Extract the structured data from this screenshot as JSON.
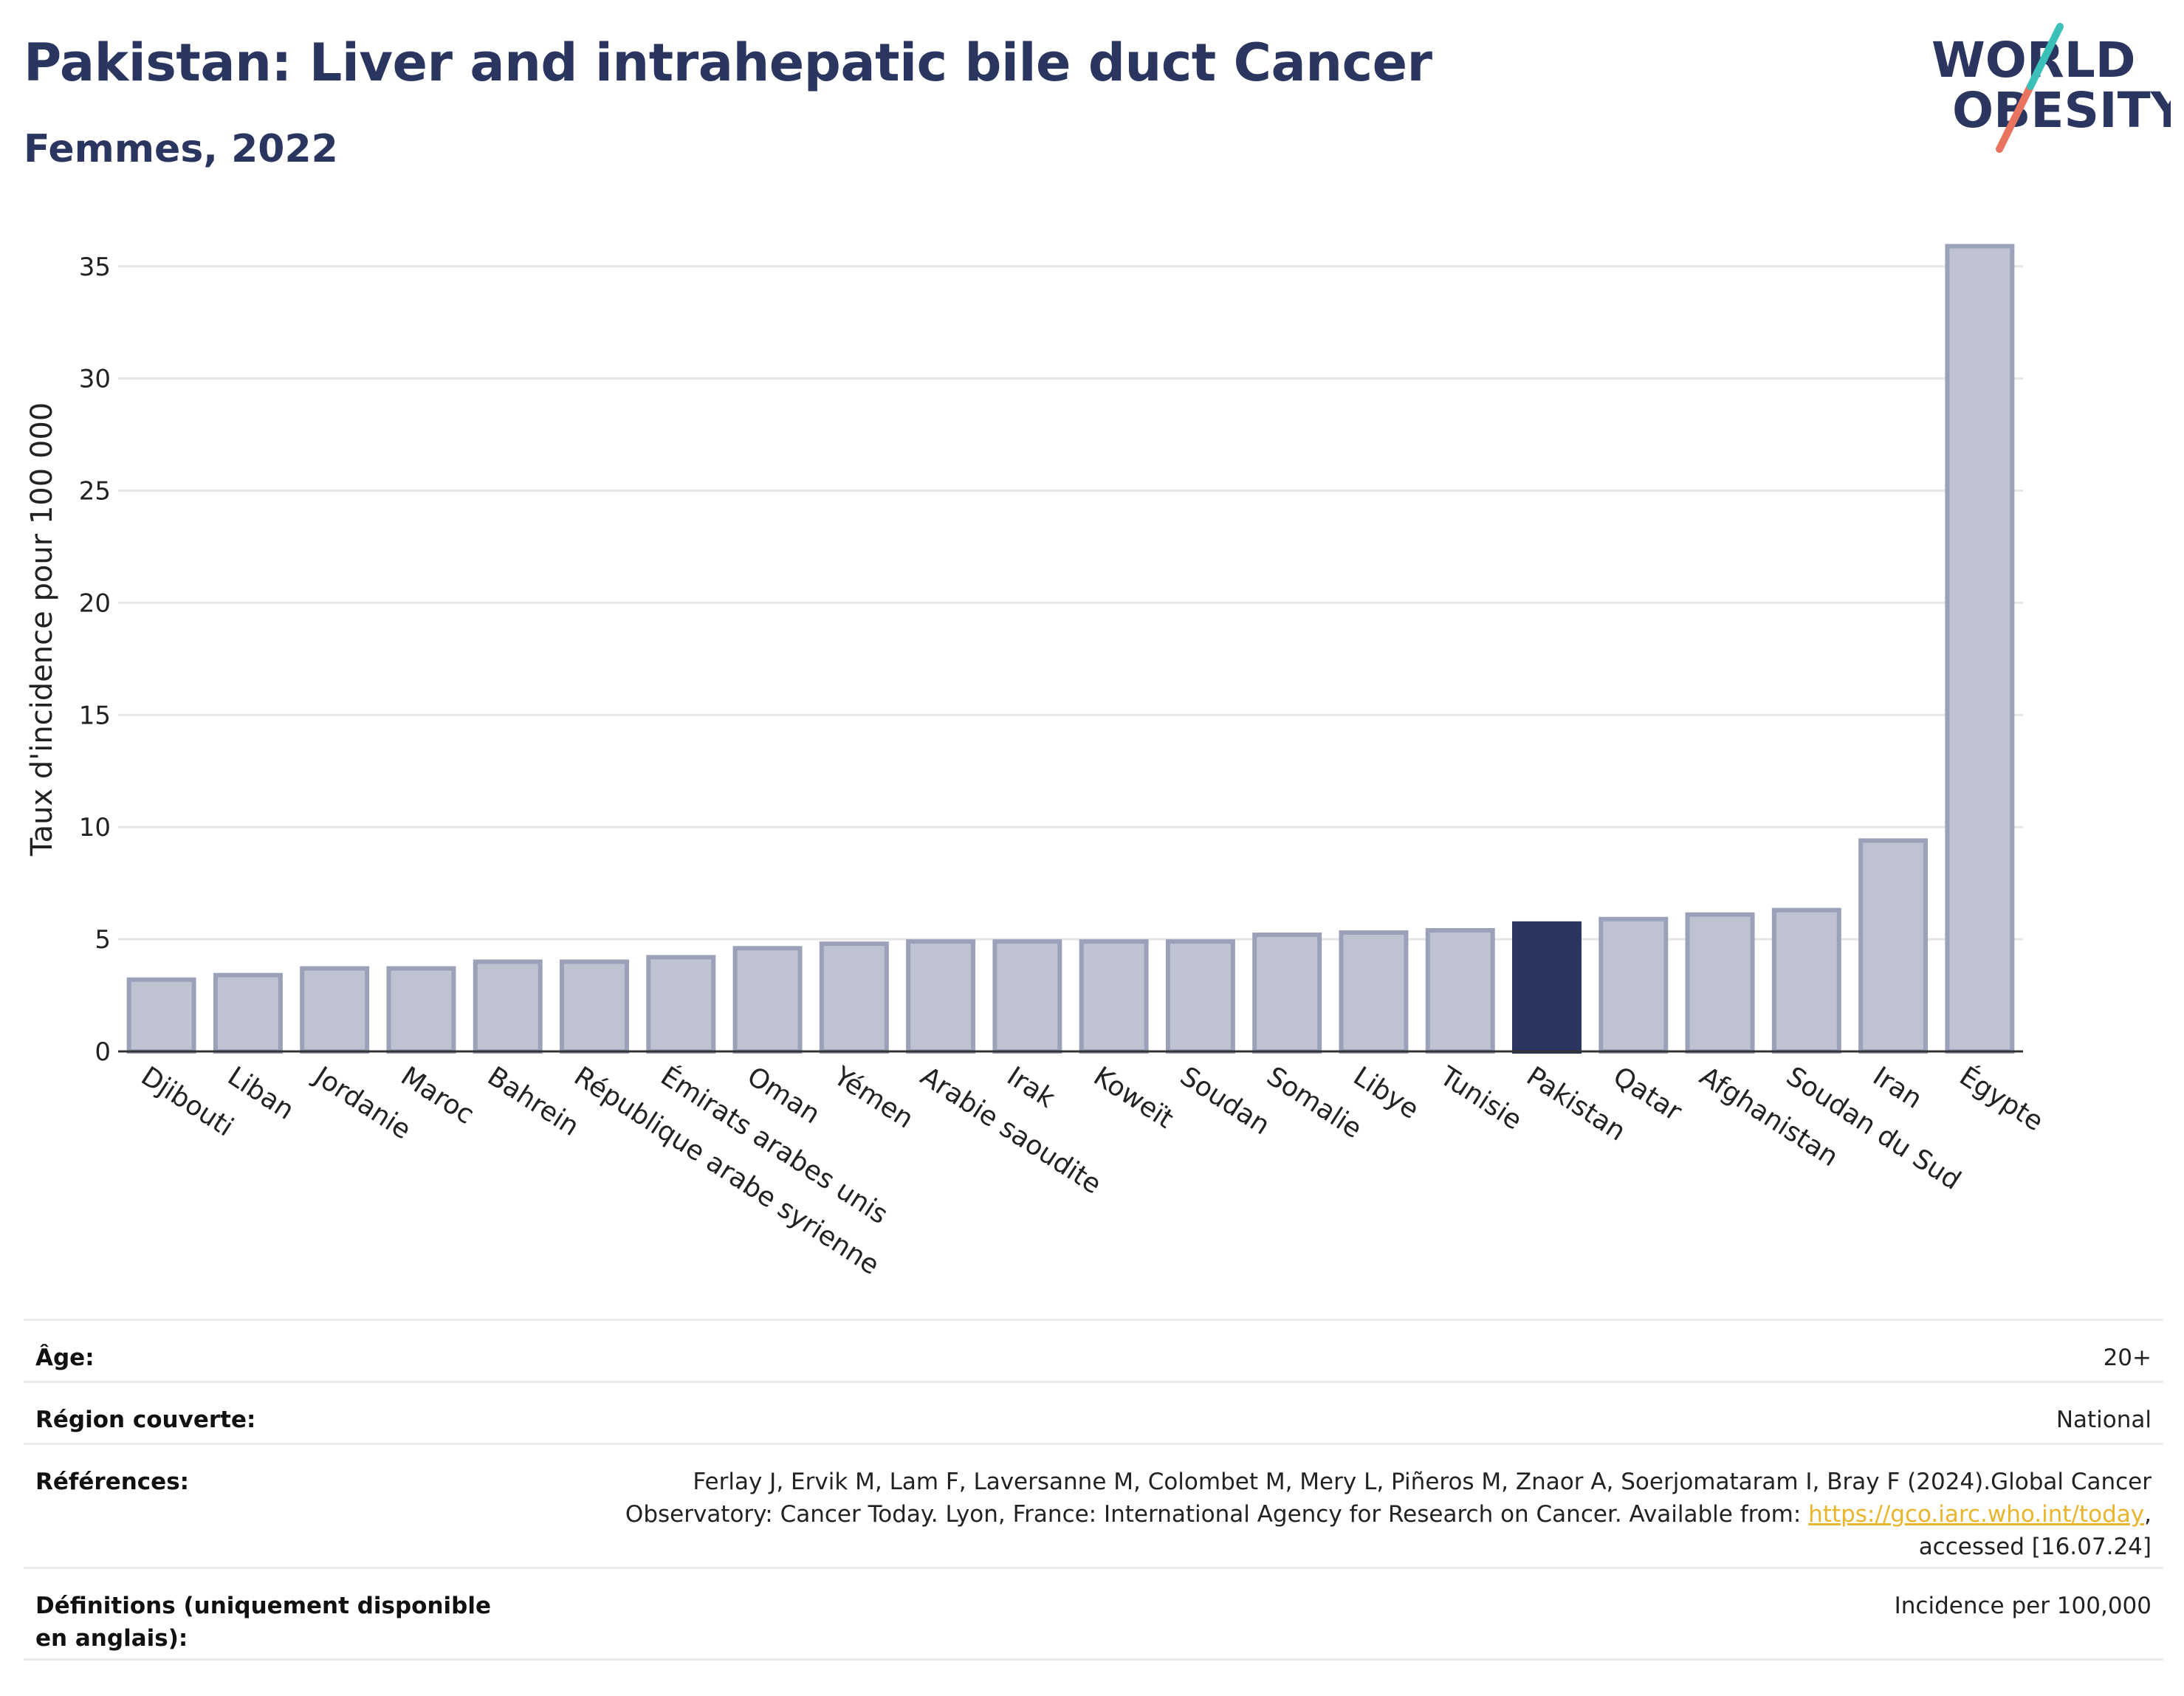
{
  "header": {
    "title": "Pakistan: Liver and intrahepatic bile duct Cancer",
    "subtitle": "Femmes, 2022"
  },
  "logo": {
    "line1": "WORLD",
    "line2": "OBESITY"
  },
  "chart_data": {
    "type": "bar",
    "title": "Pakistan: Liver and intrahepatic bile duct Cancer",
    "subtitle": "Femmes, 2022",
    "ylabel": "Taux d'incidence pour 100 000",
    "xlabel": "",
    "ylim": [
      0,
      37
    ],
    "yticks": [
      0,
      5,
      10,
      15,
      20,
      25,
      30,
      35
    ],
    "grid": true,
    "highlight": "Pakistan",
    "colors": {
      "bar": "#bfc3d1",
      "bar_edge": "#9aa1b9",
      "highlight": "#2a3560",
      "grid": "#e6e6e6"
    },
    "categories": [
      "Djibouti",
      "Liban",
      "Jordanie",
      "Maroc",
      "Bahrein",
      "République arabe syrienne",
      "Émirats arabes unis",
      "Oman",
      "Yémen",
      "Arabie saoudite",
      "Irak",
      "Koweït",
      "Soudan",
      "Somalie",
      "Libye",
      "Tunisie",
      "Pakistan",
      "Qatar",
      "Afghanistan",
      "Soudan du Sud",
      "Iran",
      "Égypte"
    ],
    "values": [
      3.2,
      3.4,
      3.7,
      3.7,
      4.0,
      4.0,
      4.2,
      4.6,
      4.8,
      4.9,
      4.9,
      4.9,
      4.9,
      5.2,
      5.3,
      5.4,
      5.7,
      5.9,
      6.1,
      6.3,
      9.4,
      35.9
    ]
  },
  "info": {
    "age_label": "Âge:",
    "age_value": "20+",
    "region_label": "Région couverte:",
    "region_value": "National",
    "refs_label": "Références:",
    "refs_text_1": "Ferlay J, Ervik M, Lam F, Laversanne M, Colombet M, Mery L, Piñeros M, Znaor A, Soerjomataram I, Bray F (2024).Global Cancer Observatory: Cancer Today. Lyon, France: International Agency for Research on Cancer. Available from: ",
    "refs_link": "https://gco.iarc.who.int/today",
    "refs_text_2": ", accessed [16.07.24]",
    "defs_label": "Définitions (uniquement disponible en anglais):",
    "defs_value": "Incidence per 100,000"
  }
}
